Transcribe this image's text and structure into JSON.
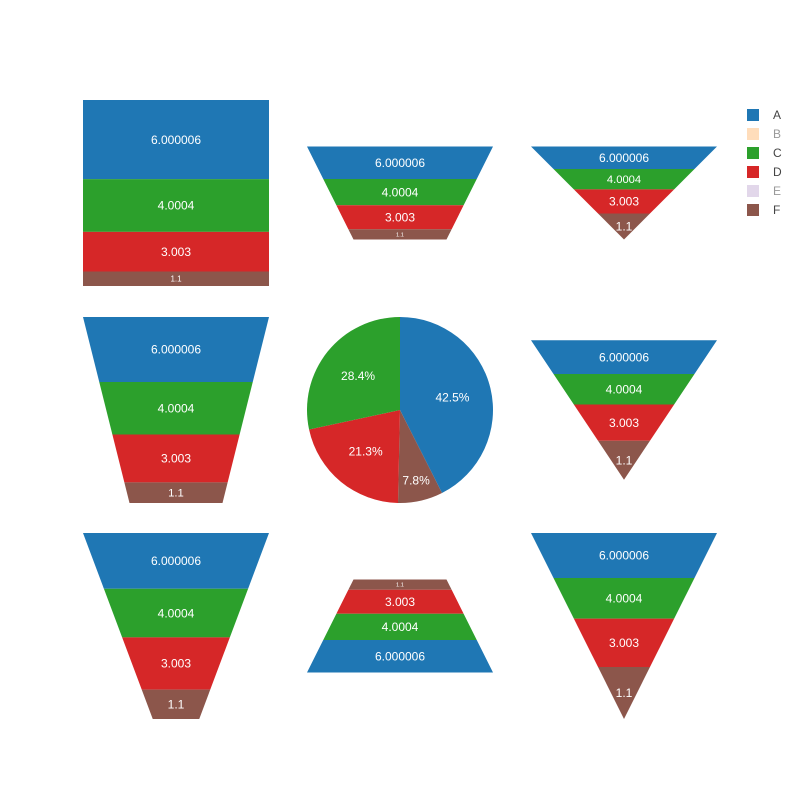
{
  "chart_data": {
    "type": "funnelarea",
    "colors": {
      "A": "#1f77b4",
      "B": "#ffbb78",
      "C": "#2ca02c",
      "D": "#d62728",
      "E": "#c5b0d5",
      "F": "#8c564b"
    },
    "legend": {
      "position": "top-right",
      "items": [
        {
          "label": "A",
          "visible": true
        },
        {
          "label": "B",
          "visible": false
        },
        {
          "label": "C",
          "visible": true
        },
        {
          "label": "D",
          "visible": true
        },
        {
          "label": "E",
          "visible": false
        },
        {
          "label": "F",
          "visible": true
        }
      ]
    },
    "segments": [
      {
        "category": "A",
        "value": 6.000006,
        "label": "6.000006"
      },
      {
        "category": "C",
        "value": 4.0004,
        "label": "4.0004"
      },
      {
        "category": "D",
        "value": 3.003,
        "label": "3.003"
      },
      {
        "category": "F",
        "value": 1.1,
        "label": "1.1"
      }
    ],
    "pie": {
      "slices": [
        {
          "category": "A",
          "value": 6.000006,
          "percent_label": "42.5%"
        },
        {
          "category": "F",
          "value": 1.1,
          "percent_label": "7.8%"
        },
        {
          "category": "D",
          "value": 3.003,
          "percent_label": "21.3%"
        },
        {
          "category": "C",
          "value": 4.0004,
          "percent_label": "28.4%"
        }
      ]
    },
    "funnels": [
      {
        "name": "funnel-top-left",
        "order": "top-down",
        "aspectratio": 0.0,
        "baseratio": 1.0
      },
      {
        "name": "funnel-top-center",
        "order": "top-down",
        "aspectratio": 0.5,
        "baseratio": 0.5
      },
      {
        "name": "funnel-top-right",
        "order": "top-down",
        "aspectratio": 0.5,
        "baseratio": 0.0
      },
      {
        "name": "funnel-middle-left",
        "order": "top-down",
        "aspectratio": 1.0,
        "baseratio": 0.5
      },
      {
        "name": "funnel-middle-right",
        "order": "top-down",
        "aspectratio": 0.75,
        "baseratio": 0.0
      },
      {
        "name": "funnel-bottom-left",
        "order": "top-down",
        "aspectratio": 1.0,
        "baseratio": 0.25
      },
      {
        "name": "funnel-bottom-center",
        "order": "reversed",
        "aspectratio": 0.5,
        "baseratio": 0.5
      },
      {
        "name": "funnel-bottom-right",
        "order": "top-down",
        "aspectratio": 1.0,
        "baseratio": 0.0
      }
    ]
  }
}
